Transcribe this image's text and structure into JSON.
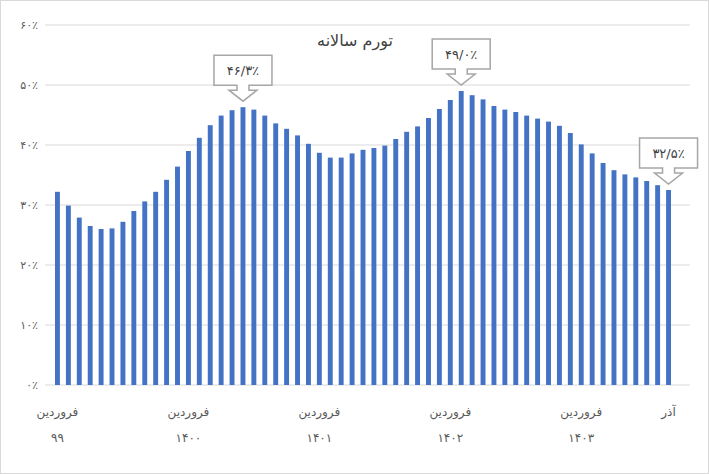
{
  "chart_data": {
    "type": "bar",
    "title": "تورم سالانه",
    "categories": [
      "فروردین ۹۹",
      null,
      null,
      null,
      null,
      null,
      null,
      null,
      null,
      null,
      null,
      null,
      "فروردین ۱۴۰۰",
      null,
      null,
      null,
      null,
      null,
      null,
      null,
      null,
      null,
      null,
      null,
      "فروردین ۱۴۰۱",
      null,
      null,
      null,
      null,
      null,
      null,
      null,
      null,
      null,
      null,
      null,
      "فروردین ۱۴۰۲",
      null,
      null,
      null,
      null,
      null,
      null,
      null,
      null,
      null,
      null,
      null,
      "فروردین ۱۴۰۳",
      null,
      null,
      null,
      null,
      null,
      null,
      null,
      "آذر"
    ],
    "values": [
      32.2,
      29.9,
      27.9,
      26.5,
      26.0,
      26.1,
      27.2,
      29.0,
      30.6,
      32.2,
      34.2,
      36.4,
      39.0,
      41.2,
      43.3,
      44.9,
      45.8,
      46.3,
      45.9,
      44.9,
      43.6,
      42.7,
      41.6,
      40.2,
      38.7,
      37.9,
      37.9,
      38.6,
      39.2,
      39.5,
      39.9,
      41.0,
      42.2,
      43.1,
      44.5,
      46.0,
      47.5,
      49.0,
      48.3,
      47.6,
      46.5,
      45.9,
      45.5,
      44.9,
      44.4,
      43.9,
      43.2,
      42.0,
      40.1,
      38.6,
      37.0,
      35.8,
      35.1,
      34.6,
      34.0,
      33.3,
      32.5
    ],
    "color": "#4472c4",
    "ylim": [
      0,
      60
    ],
    "yticks": [
      {
        "value": 0,
        "label": "۰٪"
      },
      {
        "value": 10,
        "label": "۱۰٪"
      },
      {
        "value": 20,
        "label": "۲۰٪"
      },
      {
        "value": 30,
        "label": "۳۰٪"
      },
      {
        "value": 40,
        "label": "۴۰٪"
      },
      {
        "value": 50,
        "label": "۵۰٪"
      },
      {
        "value": 60,
        "label": "۶۰٪"
      }
    ],
    "grid": true,
    "annotations": [
      {
        "index": 17,
        "label": "۴۶/۳٪"
      },
      {
        "index": 37,
        "label": "۴۹/۰٪"
      },
      {
        "index": 56,
        "label": "۳۲/۵٪"
      }
    ]
  }
}
